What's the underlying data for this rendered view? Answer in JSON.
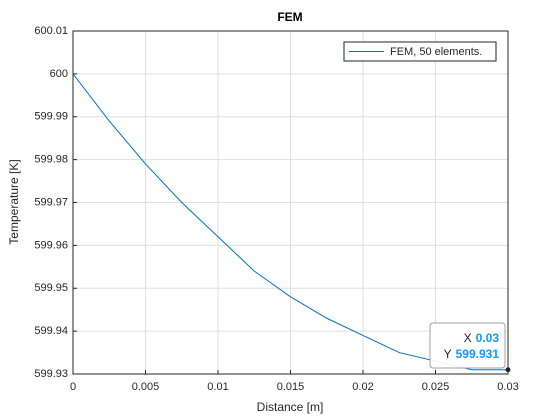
{
  "chart_data": {
    "type": "line",
    "title": "FEM",
    "xlabel": "Distance [m]",
    "ylabel": "Temperature [K]",
    "x": [
      0,
      0.0025,
      0.005,
      0.0075,
      0.01,
      0.0125,
      0.015,
      0.0175,
      0.02,
      0.0225,
      0.025,
      0.0275,
      0.03
    ],
    "series": [
      {
        "name": "FEM, 50 elements.",
        "color": "#0072bd",
        "values": [
          600,
          599.989,
          599.979,
          599.97,
          599.962,
          599.954,
          599.948,
          599.943,
          599.939,
          599.935,
          599.933,
          599.931,
          599.931
        ]
      }
    ],
    "xlim": [
      0,
      0.03
    ],
    "xticks": [
      0,
      0.005,
      0.01,
      0.015,
      0.02,
      0.025,
      0.03
    ],
    "ylim": [
      599.93,
      600.01
    ],
    "yticks": [
      599.93,
      599.94,
      599.95,
      599.96,
      599.97,
      599.98,
      599.99,
      600,
      600.01
    ],
    "grid": true,
    "legend": "northeast",
    "datatip": {
      "x_label": "X",
      "x": 0.03,
      "y_label": "Y",
      "y": 599.931,
      "color": "#0a9bff"
    }
  }
}
